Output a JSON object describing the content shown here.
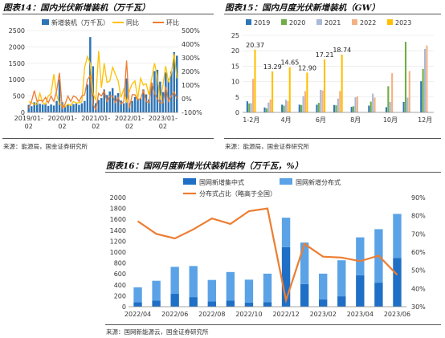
{
  "panels": {
    "fig14": {
      "title": "图表14：国内光伏新增装机（万千瓦）",
      "source": "来源：能源局，国金证券研究所"
    },
    "fig15": {
      "title": "图表15：国内月度光伏新增装机（GW）",
      "source": "来源：能源局，国金证券研究所"
    },
    "fig16": {
      "title": "图表16：国网月度新增光伏装机结构（万千瓦，%）",
      "source": "来源：国网新能源云，国金证券研究所"
    }
  },
  "chart_data": [
    {
      "id": "fig14",
      "type": "bar",
      "title": "图表14：国内光伏新增装机（万千瓦）",
      "xlabel": "",
      "ylabel": "",
      "ylabel_right": "",
      "x": [
        "2019/01",
        "2019/02",
        "2019/03",
        "2019/04",
        "2019/05",
        "2019/06",
        "2019/07",
        "2019/08",
        "2019/09",
        "2019/10",
        "2019/11",
        "2019/12",
        "2020/01",
        "2020/02",
        "2020/03",
        "2020/04",
        "2020/05",
        "2020/06",
        "2020/07",
        "2020/08",
        "2020/09",
        "2020/10",
        "2020/11",
        "2020/12",
        "2021/01",
        "2021/02",
        "2021/03",
        "2021/04",
        "2021/05",
        "2021/06",
        "2021/07",
        "2021/08",
        "2021/09",
        "2021/10",
        "2021/11",
        "2021/12",
        "2022/01",
        "2022/02",
        "2022/03",
        "2022/04",
        "2022/05",
        "2022/06",
        "2022/07",
        "2022/08",
        "2022/09",
        "2022/10",
        "2022/11",
        "2022/12",
        "2023/01",
        "2023/02",
        "2023/03",
        "2023/04",
        "2023/05",
        "2023/06"
      ],
      "tick_labels": [
        "2019/01-\n02",
        "2020/01-\n02",
        "2021/01-\n02",
        "2022/01-\n02",
        "2023/01-\n02"
      ],
      "ylim": [
        0,
        2500
      ],
      "ylim_right": [
        -100,
        500
      ],
      "yticks": [
        "0",
        "500",
        "1000",
        "1500",
        "2000",
        "2500"
      ],
      "yticks_right": [
        "-100%",
        "0%",
        "100%",
        "200%",
        "300%",
        "400%",
        "500%"
      ],
      "legend_position": "top",
      "series": [
        {
          "name": "新增装机（万千瓦）",
          "kind": "bar",
          "axis": "left",
          "color": "#2e75b6",
          "values": [
            230,
            190,
            310,
            300,
            260,
            240,
            270,
            200,
            240,
            210,
            350,
            1000,
            310,
            200,
            240,
            210,
            250,
            270,
            230,
            280,
            350,
            850,
            2300,
            1410,
            280,
            380,
            440,
            700,
            530,
            640,
            740,
            520,
            590,
            360,
            280,
            1040,
            280,
            350,
            470,
            420,
            430,
            700,
            550,
            400,
            900,
            1260,
            1300,
            940,
            620,
            1220,
            1030,
            1250,
            1840,
            1730
          ]
        },
        {
          "name": "同比",
          "kind": "line",
          "axis": "right",
          "color": "#ffc000",
          "values": [
            -20,
            -30,
            -40,
            -40,
            40,
            -30,
            -40,
            20,
            40,
            180,
            30,
            -40,
            -50,
            -60,
            -40,
            -50,
            -20,
            -30,
            -30,
            -20,
            230,
            310,
            260,
            40,
            -10,
            350,
            80,
            260,
            120,
            130,
            230,
            180,
            130,
            10,
            70,
            -30,
            60,
            110,
            130,
            0,
            150,
            100,
            110,
            30,
            150,
            260,
            160,
            -10,
            100,
            240,
            120,
            190,
            330,
            150
          ]
        },
        {
          "name": "环比",
          "kind": "line",
          "axis": "right",
          "color": "#ed7d31",
          "values": [
            -70,
            -20,
            60,
            -20,
            -10,
            -20,
            10,
            -30,
            20,
            -20,
            60,
            190,
            -70,
            -40,
            20,
            -20,
            20,
            10,
            -20,
            20,
            30,
            140,
            170,
            -40,
            -80,
            40,
            20,
            60,
            -20,
            20,
            20,
            -30,
            10,
            -40,
            -20,
            280,
            -70,
            30,
            30,
            -10,
            0,
            60,
            -20,
            -30,
            120,
            40,
            0,
            -30,
            -30,
            90,
            -20,
            20,
            50,
            0
          ]
        }
      ]
    },
    {
      "id": "fig15",
      "type": "bar",
      "title": "图表15：国内月度光伏新增装机（GW）",
      "xlabel": "",
      "ylabel": "",
      "categories": [
        "1-2月",
        "3月",
        "4月",
        "5月",
        "6月",
        "7月",
        "8月",
        "9月",
        "10月",
        "11月",
        "12月"
      ],
      "tick_labels": [
        "1-2月",
        "4月",
        "6月",
        "8月",
        "10月",
        "12月"
      ],
      "ylim": [
        0,
        25
      ],
      "yticks": [
        "0",
        "5",
        "10",
        "15",
        "20",
        "25"
      ],
      "legend_position": "top",
      "series": [
        {
          "name": "2019",
          "color": "#2e75b6",
          "values": [
            3.6,
            1.6,
            2.5,
            2.5,
            2.5,
            2.4,
            1.8,
            2.2,
            1.7,
            3.4,
            10.1
          ]
        },
        {
          "name": "2020",
          "color": "#70ad47",
          "values": [
            2.9,
            1.3,
            2.2,
            2.4,
            3.1,
            2.3,
            2.0,
            3.5,
            8.5,
            22.9,
            14.1
          ]
        },
        {
          "name": "2021",
          "color": "#a9b9d6",
          "values": [
            3.0,
            3.2,
            4.1,
            5.3,
            7.3,
            4.5,
            4.9,
            6.1,
            3.4,
            4.8,
            20.6
          ]
        },
        {
          "name": "2022",
          "color": "#f4b183",
          "values": [
            10.9,
            4.2,
            3.7,
            6.9,
            7.1,
            6.9,
            5.2,
            4.8,
            12.7,
            13.4,
            21.7
          ]
        },
        {
          "name": "2023",
          "color": "#ffc000",
          "values": [
            20.37,
            13.29,
            14.65,
            12.9,
            17.21,
            18.74,
            null,
            null,
            null,
            null,
            null
          ]
        }
      ],
      "data_labels": [
        "20.37",
        "13.29",
        "14.65",
        "12.90",
        "17.21",
        "18.74"
      ]
    },
    {
      "id": "fig16",
      "type": "bar",
      "title": "图表16：国网月度新增光伏装机结构（万千瓦，%）",
      "xlabel": "",
      "ylabel": "",
      "ylabel_right": "",
      "categories": [
        "2022/04",
        "2022/05",
        "2022/06",
        "2022/07",
        "2022/08",
        "2022/09",
        "2022/10",
        "2022/11",
        "2022/12",
        "2023/01",
        "2023/02",
        "2023/03",
        "2023/04",
        "2023/05",
        "2023/06"
      ],
      "tick_labels": [
        "2022/04",
        "2022/06",
        "2022/08",
        "2022/10",
        "2022/12",
        "2023/02",
        "2023/04",
        "2023/06"
      ],
      "stacked": true,
      "ylim": [
        0,
        2000
      ],
      "ylim_right": [
        30,
        90
      ],
      "yticks": [
        "0",
        "200",
        "400",
        "600",
        "800",
        "1000",
        "1200",
        "1400",
        "1600",
        "1800",
        "2000"
      ],
      "yticks_right": [
        "30%",
        "40%",
        "50%",
        "60%",
        "70%",
        "80%",
        "90%"
      ],
      "legend_position": "top",
      "series": [
        {
          "name": "国网新增集中式",
          "kind": "bar",
          "axis": "left",
          "color": "#1f6fc6",
          "values": [
            80,
            110,
            235,
            175,
            95,
            110,
            75,
            85,
            1090,
            415,
            135,
            190,
            575,
            440,
            890
          ]
        },
        {
          "name": "国网新增分布式",
          "kind": "bar",
          "axis": "left",
          "color": "#5ba3e6",
          "values": [
            275,
            365,
            495,
            570,
            395,
            525,
            420,
            520,
            540,
            760,
            470,
            660,
            695,
            980,
            810
          ]
        },
        {
          "name": "分布式占比（略高于全国）",
          "kind": "line",
          "axis": "right",
          "color": "#ed7d31",
          "values": [
            77.0,
            70.0,
            67.5,
            72.5,
            78.5,
            75.5,
            82.5,
            84.0,
            33.5,
            64.5,
            57.5,
            57.0,
            55.0,
            58.0,
            47.5
          ]
        }
      ]
    }
  ]
}
